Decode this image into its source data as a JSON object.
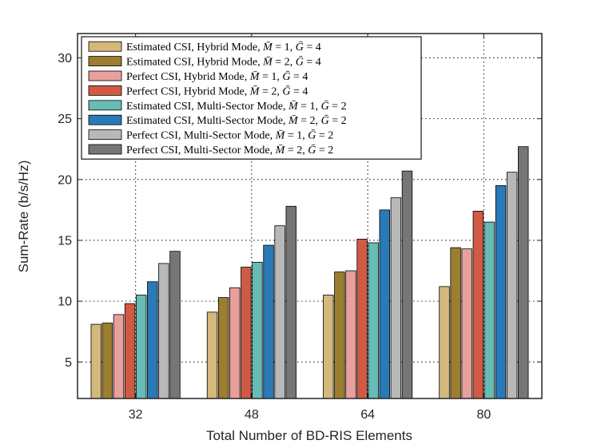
{
  "chart_data": {
    "type": "bar",
    "title": "",
    "xlabel": "Total Number of BD-RIS Elements",
    "ylabel": "Sum-Rate (b/s/Hz)",
    "ylim": [
      2,
      32
    ],
    "yticks": [
      5,
      10,
      15,
      20,
      25,
      30
    ],
    "grid": true,
    "legend_position": "top-left",
    "categories": [
      "32",
      "48",
      "64",
      "80"
    ],
    "series": [
      {
        "name": "Estimated CSI, Hybrid Mode, M̄ = 1, Ḡ = 4",
        "label_prefix": "Estimated CSI, Hybrid Mode, ",
        "m": "1",
        "g": "4",
        "color": "#d4b87c",
        "values": [
          8.1,
          9.1,
          10.5,
          11.2
        ]
      },
      {
        "name": "Estimated CSI, Hybrid Mode, M̄ = 2, Ḡ = 4",
        "label_prefix": "Estimated CSI, Hybrid Mode, ",
        "m": "2",
        "g": "4",
        "color": "#9c7e31",
        "values": [
          8.2,
          10.3,
          12.4,
          14.4
        ]
      },
      {
        "name": "Perfect CSI, Hybrid Mode, M̄ = 1, Ḡ = 4",
        "label_prefix": "Perfect CSI, Hybrid Mode, ",
        "m": "1",
        "g": "4",
        "color": "#e8a09c",
        "values": [
          8.9,
          11.1,
          12.5,
          14.3
        ]
      },
      {
        "name": "Perfect CSI, Hybrid Mode, M̄ = 2, Ḡ = 4",
        "label_prefix": "Perfect CSI, Hybrid Mode, ",
        "m": "2",
        "g": "4",
        "color": "#d05a43",
        "values": [
          9.8,
          12.8,
          15.1,
          17.4
        ]
      },
      {
        "name": "Estimated CSI, Multi-Sector Mode, M̄ = 1, Ḡ = 2",
        "label_prefix": "Estimated CSI, Multi-Sector Mode, ",
        "m": "1",
        "g": "2",
        "color": "#67bcb5",
        "values": [
          10.5,
          13.2,
          14.8,
          16.5
        ]
      },
      {
        "name": "Estimated CSI, Multi-Sector Mode, M̄ = 2, Ḡ = 2",
        "label_prefix": "Estimated CSI, Multi-Sector Mode, ",
        "m": "2",
        "g": "2",
        "color": "#2a7ab8",
        "values": [
          11.6,
          14.6,
          17.5,
          19.5
        ]
      },
      {
        "name": "Perfect CSI, Multi-Sector Mode, M̄ = 1, Ḡ = 2",
        "label_prefix": "Perfect CSI, Multi-Sector Mode, ",
        "m": "1",
        "g": "2",
        "color": "#b8b8b8",
        "values": [
          13.1,
          16.2,
          18.5,
          20.6
        ]
      },
      {
        "name": "Perfect CSI, Multi-Sector Mode, M̄ = 2, Ḡ = 2",
        "label_prefix": "Perfect CSI, Multi-Sector Mode, ",
        "m": "2",
        "g": "2",
        "color": "#767676",
        "values": [
          14.1,
          17.8,
          20.7,
          22.7
        ]
      }
    ]
  }
}
